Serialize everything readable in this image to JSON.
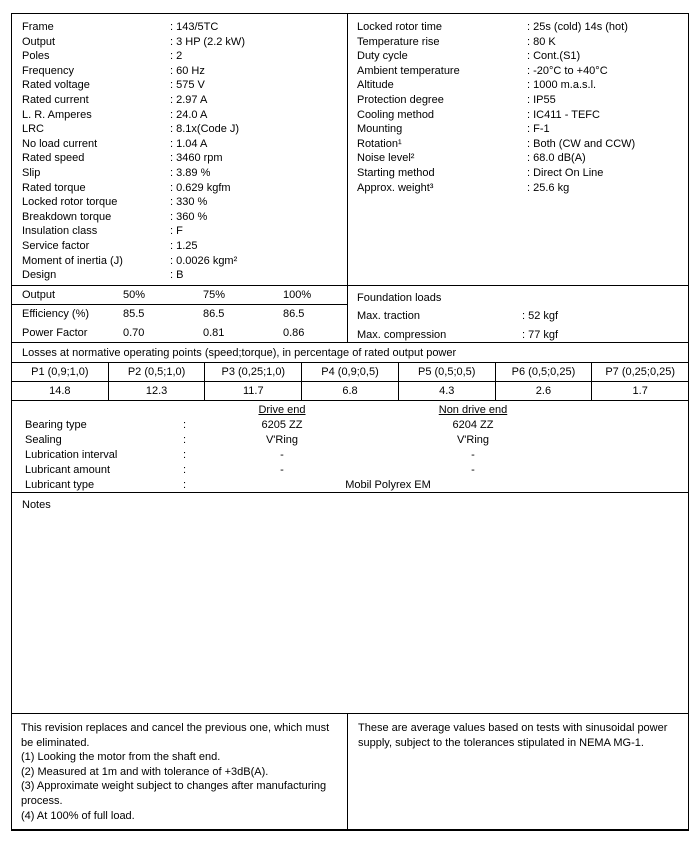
{
  "spec": {
    "left": [
      {
        "label": "Frame",
        "value": ": 143/5TC"
      },
      {
        "label": "Output",
        "value": ": 3 HP (2.2 kW)"
      },
      {
        "label": "Poles",
        "value": ": 2"
      },
      {
        "label": "Frequency",
        "value": ": 60 Hz"
      },
      {
        "label": "Rated voltage",
        "value": ": 575 V"
      },
      {
        "label": "Rated current",
        "value": ": 2.97 A"
      },
      {
        "label": "L. R. Amperes",
        "value": ": 24.0 A"
      },
      {
        "label": "LRC",
        "value": ": 8.1x(Code J)"
      },
      {
        "label": "No load current",
        "value": ": 1.04 A"
      },
      {
        "label": "Rated speed",
        "value": ": 3460 rpm"
      },
      {
        "label": "Slip",
        "value": ": 3.89 %"
      },
      {
        "label": "Rated torque",
        "value": ": 0.629 kgfm"
      },
      {
        "label": "Locked rotor torque",
        "value": ": 330 %"
      },
      {
        "label": "Breakdown torque",
        "value": ": 360 %"
      },
      {
        "label": "Insulation class",
        "value": ": F"
      },
      {
        "label": "Service factor",
        "value": ": 1.25"
      },
      {
        "label": "Moment of inertia (J)",
        "value": ": 0.0026 kgm²"
      },
      {
        "label": "Design",
        "value": ": B"
      }
    ],
    "right": [
      {
        "label": "Locked rotor time",
        "value": ": 25s (cold) 14s (hot)"
      },
      {
        "label": "Temperature rise",
        "value": ": 80 K"
      },
      {
        "label": "Duty cycle",
        "value": ": Cont.(S1)"
      },
      {
        "label": "Ambient temperature",
        "value": ": -20°C to +40°C"
      },
      {
        "label": "Altitude",
        "value": ": 1000 m.a.s.l."
      },
      {
        "label": "Protection degree",
        "value": ": IP55"
      },
      {
        "label": "Cooling method",
        "value": ": IC411 - TEFC"
      },
      {
        "label": "Mounting",
        "value": ": F-1"
      },
      {
        "label": "Rotation¹",
        "value": ": Both (CW and CCW)"
      },
      {
        "label": "Noise level²",
        "value": ": 68.0 dB(A)"
      },
      {
        "label": "Starting method",
        "value": ": Direct On Line"
      },
      {
        "label": "Approx. weight³",
        "value": ": 25.6 kg"
      }
    ]
  },
  "performance": {
    "headers": [
      "Output",
      "50%",
      "75%",
      "100%"
    ],
    "rows": [
      {
        "label": "Efficiency (%)",
        "v1": "85.5",
        "v2": "86.5",
        "v3": "86.5"
      },
      {
        "label": "Power Factor",
        "v1": "0.70",
        "v2": "0.81",
        "v3": "0.86"
      }
    ]
  },
  "foundation": {
    "title": "Foundation loads",
    "rows": [
      {
        "label": "Max. traction",
        "value": ": 52 kgf"
      },
      {
        "label": "Max. compression",
        "value": ": 77 kgf"
      }
    ]
  },
  "losses": {
    "title": "Losses at normative operating points (speed;torque), in percentage of rated output power",
    "columns": [
      "P1 (0,9;1,0)",
      "P2 (0,5;1,0)",
      "P3 (0,25;1,0)",
      "P4 (0,9;0,5)",
      "P5 (0,5;0,5)",
      "P6 (0,5;0,25)",
      "P7 (0,25;0,25)"
    ],
    "values": [
      "14.8",
      "12.3",
      "11.7",
      "6.8",
      "4.3",
      "2.6",
      "1.7"
    ]
  },
  "bearings": {
    "colon": ":",
    "col_drive": "Drive end",
    "col_non_drive": "Non drive end",
    "rows": [
      {
        "label": "Bearing type",
        "drive": "6205 ZZ",
        "non_drive": "6204 ZZ"
      },
      {
        "label": "Sealing",
        "drive": "V'Ring",
        "non_drive": "V'Ring"
      },
      {
        "label": "Lubrication interval",
        "drive": "-",
        "non_drive": "-"
      },
      {
        "label": "Lubricant amount",
        "drive": "-",
        "non_drive": "-"
      }
    ],
    "lubricant_type": {
      "label": "Lubricant type",
      "value": "Mobil Polyrex EM"
    }
  },
  "notes": {
    "title": "Notes"
  },
  "footer": {
    "left_paragraphs": [
      "This revision replaces and cancel the previous one, which must be eliminated.",
      "(1) Looking the motor from the shaft end.",
      "(2) Measured at 1m and with tolerance of +3dB(A).",
      "(3) Approximate weight subject to changes after manufacturing process.",
      "(4) At 100% of full load."
    ],
    "right_text": "These are average values based on tests with sinusoidal power supply, subject to the tolerances stipulated in NEMA MG-1."
  }
}
